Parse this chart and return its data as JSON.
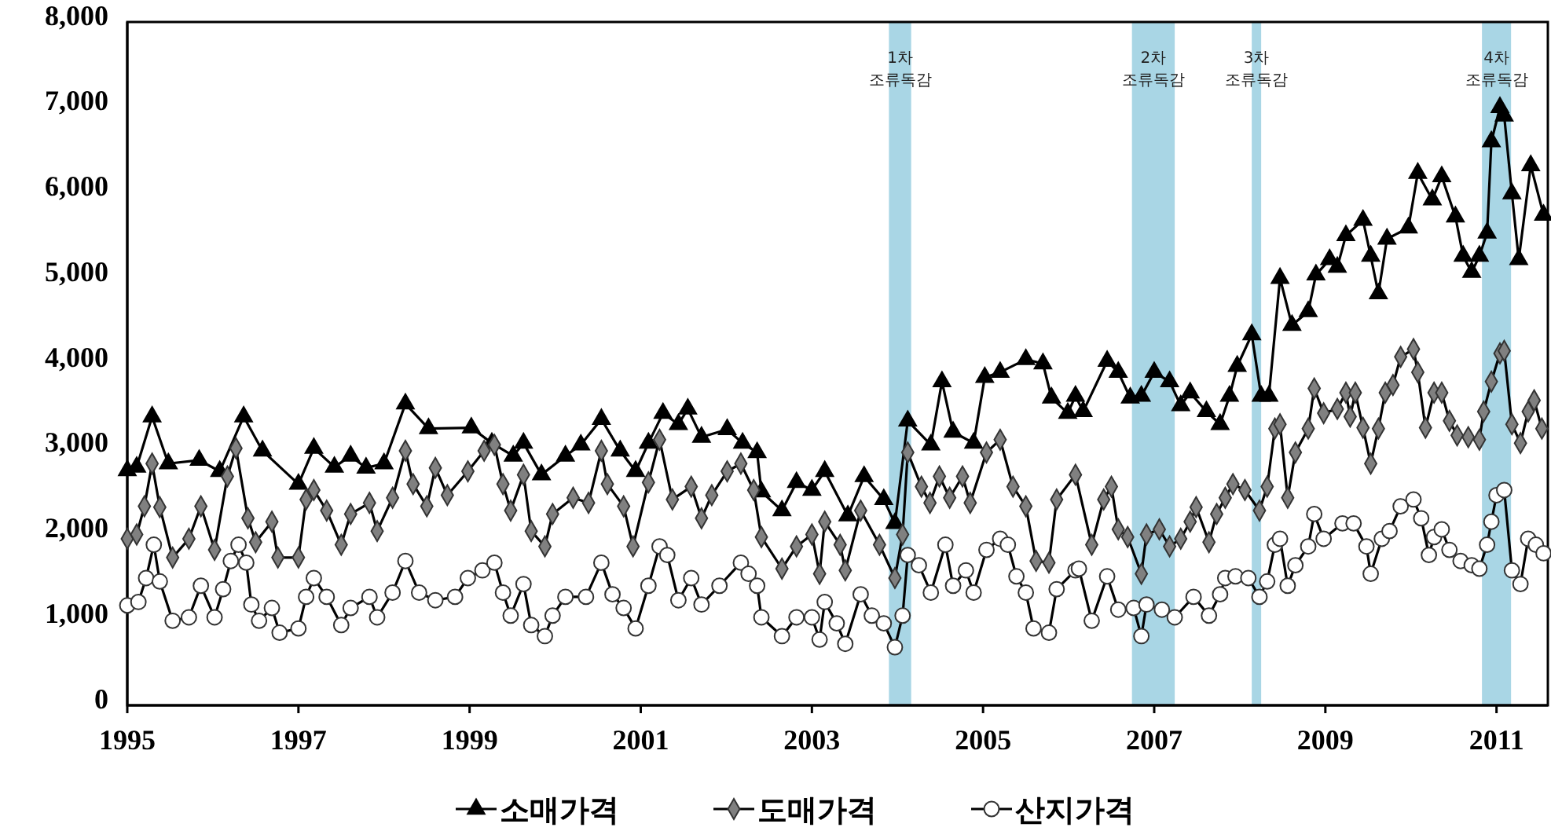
{
  "chart_data": {
    "type": "line",
    "xlim": [
      1995,
      2011.6
    ],
    "xticks": [
      1995,
      1997,
      1999,
      2001,
      2003,
      2005,
      2007,
      2009,
      2011
    ],
    "ylim": [
      0,
      8000
    ],
    "yticks": [
      {
        "value": 0,
        "label": "0"
      },
      {
        "value": 1000,
        "label": "1,000"
      },
      {
        "value": 2000,
        "label": "2,000"
      },
      {
        "value": 3000,
        "label": "3,000"
      },
      {
        "value": 4000,
        "label": "4,000"
      },
      {
        "value": 5000,
        "label": "5,000"
      },
      {
        "value": 6000,
        "label": "6,000"
      },
      {
        "value": 7000,
        "label": "7,000"
      },
      {
        "value": 8000,
        "label": "8,000"
      }
    ],
    "grid": false,
    "legend": "bottom",
    "line_style": "solid",
    "bands": [
      {
        "axis": "x",
        "from": 2003.9,
        "to": 2004.16,
        "label": "1차\n조류독감",
        "color": "#a9d6e5"
      },
      {
        "axis": "x",
        "from": 2006.74,
        "to": 2007.24,
        "label": "2차\n조류독감",
        "color": "#a9d6e5"
      },
      {
        "axis": "x",
        "from": 2008.14,
        "to": 2008.25,
        "label": "3차\n조류독감",
        "color": "#a9d6e5"
      },
      {
        "axis": "x",
        "from": 2010.83,
        "to": 2011.17,
        "label": "4차\n조류독감",
        "color": "#a9d6e5"
      }
    ],
    "series": [
      {
        "name": "소매가격",
        "color": "#000000",
        "marker": "triangle",
        "x": [
          1995.0,
          1995.11,
          1995.29,
          1995.48,
          1995.84,
          1996.08,
          1996.36,
          1996.58,
          1997.0,
          1997.18,
          1997.42,
          1997.61,
          1997.79,
          1998.0,
          1998.25,
          1998.52,
          1999.02,
          1999.26,
          1999.51,
          1999.63,
          1999.84,
          2000.12,
          2000.3,
          2000.54,
          2000.76,
          2000.94,
          2001.09,
          2001.26,
          2001.44,
          2001.55,
          2001.71,
          2002.01,
          2002.19,
          2002.36,
          2002.41,
          2002.65,
          2002.82,
          2003.0,
          2003.15,
          2003.42,
          2003.61,
          2003.84,
          2003.97,
          2004.12,
          2004.39,
          2004.52,
          2004.65,
          2004.89,
          2005.02,
          2005.2,
          2005.5,
          2005.7,
          2005.8,
          2005.99,
          2006.08,
          2006.17,
          2006.45,
          2006.58,
          2006.72,
          2006.85,
          2007.0,
          2007.18,
          2007.31,
          2007.42,
          2007.61,
          2007.77,
          2007.88,
          2007.97,
          2008.14,
          2008.25,
          2008.34,
          2008.47,
          2008.61,
          2008.8,
          2008.89,
          2009.05,
          2009.14,
          2009.24,
          2009.44,
          2009.53,
          2009.62,
          2009.72,
          2009.97,
          2010.08,
          2010.25,
          2010.36,
          2010.52,
          2010.61,
          2010.71,
          2010.8,
          2010.89,
          2010.94,
          2011.04,
          2011.09,
          2011.18,
          2011.26,
          2011.4,
          2011.55
        ],
        "values": [
          2750,
          2790,
          3380,
          2830,
          2870,
          2740,
          3380,
          2980,
          2590,
          3010,
          2790,
          2920,
          2780,
          2830,
          3530,
          3240,
          3250,
          3070,
          2920,
          3070,
          2700,
          2920,
          3050,
          3350,
          2980,
          2740,
          3070,
          3420,
          3290,
          3470,
          3140,
          3230,
          3070,
          2960,
          2500,
          2280,
          2610,
          2520,
          2740,
          2220,
          2680,
          2410,
          2130,
          3330,
          3050,
          3790,
          3200,
          3070,
          3840,
          3900,
          4050,
          4000,
          3600,
          3420,
          3620,
          3440,
          4030,
          3900,
          3600,
          3620,
          3900,
          3790,
          3510,
          3660,
          3440,
          3290,
          3620,
          3970,
          4340,
          3620,
          3620,
          5000,
          4450,
          4610,
          5040,
          5220,
          5130,
          5500,
          5680,
          5260,
          4820,
          5460,
          5590,
          6230,
          5920,
          6190,
          5720,
          5260,
          5070,
          5260,
          5530,
          6600,
          7000,
          6900,
          5990,
          5220,
          6320,
          5740
        ]
      },
      {
        "name": "도매가격",
        "color": "#808080",
        "marker": "diamond",
        "x": [
          1995.0,
          1995.11,
          1995.2,
          1995.29,
          1995.38,
          1995.53,
          1995.72,
          1995.86,
          1996.02,
          1996.17,
          1996.27,
          1996.41,
          1996.5,
          1996.69,
          1996.76,
          1997.0,
          1997.09,
          1997.18,
          1997.33,
          1997.5,
          1997.61,
          1997.83,
          1997.92,
          1998.1,
          1998.25,
          1998.34,
          1998.5,
          1998.6,
          1998.74,
          1998.98,
          1999.17,
          1999.29,
          1999.39,
          1999.48,
          1999.63,
          1999.72,
          1999.88,
          1999.97,
          2000.21,
          2000.39,
          2000.54,
          2000.61,
          2000.8,
          2000.91,
          2001.09,
          2001.22,
          2001.37,
          2001.59,
          2001.71,
          2001.83,
          2002.01,
          2002.17,
          2002.32,
          2002.41,
          2002.65,
          2002.82,
          2003.0,
          2003.09,
          2003.15,
          2003.33,
          2003.39,
          2003.57,
          2003.79,
          2003.97,
          2004.06,
          2004.12,
          2004.28,
          2004.38,
          2004.49,
          2004.61,
          2004.76,
          2004.85,
          2005.04,
          2005.2,
          2005.35,
          2005.5,
          2005.62,
          2005.77,
          2005.86,
          2006.08,
          2006.27,
          2006.41,
          2006.5,
          2006.58,
          2006.69,
          2006.85,
          2006.91,
          2007.06,
          2007.18,
          2007.31,
          2007.42,
          2007.49,
          2007.64,
          2007.73,
          2007.83,
          2007.92,
          2008.06,
          2008.23,
          2008.32,
          2008.41,
          2008.47,
          2008.56,
          2008.65,
          2008.8,
          2008.87,
          2008.98,
          2009.14,
          2009.24,
          2009.29,
          2009.35,
          2009.44,
          2009.53,
          2009.62,
          2009.7,
          2009.79,
          2009.88,
          2010.03,
          2010.08,
          2010.17,
          2010.27,
          2010.36,
          2010.45,
          2010.54,
          2010.67,
          2010.8,
          2010.85,
          2010.94,
          2011.04,
          2011.09,
          2011.18,
          2011.28,
          2011.37,
          2011.44,
          2011.53
        ],
        "values": [
          1950,
          2000,
          2330,
          2830,
          2320,
          1730,
          1950,
          2330,
          1820,
          2680,
          3010,
          2190,
          1910,
          2150,
          1730,
          1730,
          2410,
          2520,
          2280,
          1880,
          2240,
          2370,
          2040,
          2430,
          2980,
          2590,
          2330,
          2780,
          2460,
          2740,
          2980,
          3050,
          2590,
          2280,
          2700,
          2040,
          1860,
          2240,
          2430,
          2370,
          2980,
          2590,
          2330,
          1860,
          2610,
          3110,
          2410,
          2560,
          2190,
          2460,
          2740,
          2830,
          2520,
          1970,
          1600,
          1860,
          2000,
          1540,
          2150,
          1880,
          1580,
          2280,
          1880,
          1490,
          2000,
          2960,
          2560,
          2370,
          2680,
          2430,
          2680,
          2370,
          2960,
          3110,
          2560,
          2330,
          1690,
          1670,
          2410,
          2700,
          1880,
          2410,
          2560,
          2060,
          1970,
          1540,
          2000,
          2060,
          1860,
          1950,
          2150,
          2320,
          1910,
          2240,
          2430,
          2590,
          2520,
          2280,
          2560,
          3240,
          3290,
          2430,
          2960,
          3240,
          3710,
          3420,
          3470,
          3660,
          3380,
          3660,
          3250,
          2830,
          3240,
          3660,
          3750,
          4080,
          4170,
          3900,
          3250,
          3660,
          3660,
          3330,
          3160,
          3140,
          3110,
          3440,
          3790,
          4120,
          4150,
          3290,
          3070,
          3440,
          3570,
          3240
        ]
      },
      {
        "name": "산지가격",
        "color": "#ffffff",
        "marker": "circle",
        "x": [
          1995.0,
          1995.13,
          1995.22,
          1995.31,
          1995.38,
          1995.53,
          1995.72,
          1995.86,
          1996.02,
          1996.12,
          1996.21,
          1996.3,
          1996.39,
          1996.45,
          1996.54,
          1996.69,
          1996.78,
          1997.0,
          1997.09,
          1997.18,
          1997.33,
          1997.5,
          1997.61,
          1997.83,
          1997.92,
          1998.1,
          1998.25,
          1998.41,
          1998.6,
          1998.83,
          1998.98,
          1999.15,
          1999.29,
          1999.39,
          1999.48,
          1999.63,
          1999.72,
          1999.88,
          1999.97,
          2000.12,
          2000.36,
          2000.54,
          2000.67,
          2000.8,
          2000.94,
          2001.09,
          2001.22,
          2001.31,
          2001.44,
          2001.59,
          2001.71,
          2001.92,
          2002.17,
          2002.26,
          2002.36,
          2002.41,
          2002.65,
          2002.82,
          2003.0,
          2003.09,
          2003.15,
          2003.29,
          2003.39,
          2003.57,
          2003.7,
          2003.84,
          2003.97,
          2004.06,
          2004.12,
          2004.25,
          2004.39,
          2004.56,
          2004.65,
          2004.8,
          2004.89,
          2005.04,
          2005.2,
          2005.29,
          2005.39,
          2005.5,
          2005.59,
          2005.77,
          2005.86,
          2006.08,
          2006.12,
          2006.27,
          2006.45,
          2006.58,
          2006.76,
          2006.85,
          2006.91,
          2007.09,
          2007.24,
          2007.46,
          2007.64,
          2007.77,
          2007.83,
          2007.95,
          2008.1,
          2008.23,
          2008.32,
          2008.41,
          2008.47,
          2008.56,
          2008.65,
          2008.8,
          2008.87,
          2008.98,
          2009.2,
          2009.33,
          2009.48,
          2009.53,
          2009.66,
          2009.75,
          2009.88,
          2010.03,
          2010.12,
          2010.21,
          2010.27,
          2010.36,
          2010.45,
          2010.58,
          2010.71,
          2010.8,
          2010.89,
          2010.94,
          2011.0,
          2011.09,
          2011.18,
          2011.28,
          2011.37,
          2011.46,
          2011.55
        ],
        "values": [
          1170,
          1210,
          1490,
          1880,
          1450,
          990,
          1030,
          1400,
          1030,
          1360,
          1690,
          1880,
          1670,
          1180,
          990,
          1140,
          850,
          900,
          1270,
          1490,
          1270,
          940,
          1140,
          1270,
          1030,
          1320,
          1690,
          1320,
          1230,
          1270,
          1490,
          1580,
          1670,
          1320,
          1050,
          1420,
          940,
          810,
          1050,
          1270,
          1270,
          1670,
          1300,
          1140,
          900,
          1400,
          1860,
          1760,
          1230,
          1490,
          1180,
          1400,
          1670,
          1540,
          1400,
          1030,
          810,
          1030,
          1030,
          770,
          1210,
          960,
          720,
          1300,
          1050,
          960,
          680,
          1050,
          1760,
          1640,
          1320,
          1880,
          1400,
          1580,
          1320,
          1820,
          1950,
          1880,
          1510,
          1320,
          900,
          850,
          1360,
          1580,
          1600,
          990,
          1510,
          1120,
          1140,
          810,
          1180,
          1120,
          1030,
          1270,
          1050,
          1300,
          1490,
          1510,
          1490,
          1270,
          1450,
          1880,
          1950,
          1400,
          1640,
          1860,
          2240,
          1950,
          2130,
          2130,
          1860,
          1540,
          1950,
          2040,
          2330,
          2410,
          2190,
          1760,
          1970,
          2060,
          1820,
          1690,
          1640,
          1600,
          1880,
          2150,
          2460,
          2520,
          1580,
          1420,
          1950,
          1880,
          1780
        ]
      }
    ]
  }
}
